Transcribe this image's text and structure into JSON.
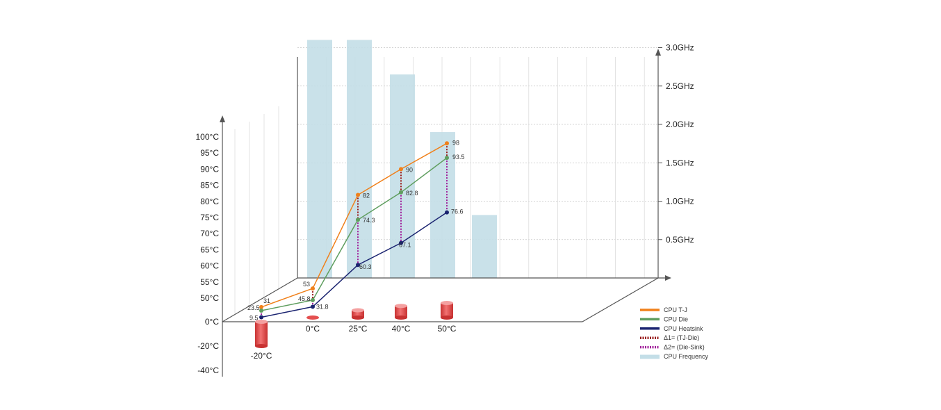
{
  "chart_data": {
    "type": "line",
    "title": "",
    "categories": [
      "-20°C",
      "0°C",
      "25°C",
      "40°C",
      "50°C"
    ],
    "y_left": {
      "unit": "°C",
      "positive_ticks": [
        "100°C",
        "95°C",
        "90°C",
        "85°C",
        "80°C",
        "75°C",
        "70°C",
        "65°C",
        "60°C",
        "55°C",
        "50°C"
      ],
      "zero_tick": "0°C",
      "negative_ticks": [
        "-20°C",
        "-40°C"
      ],
      "range": [
        -40,
        100
      ]
    },
    "y_right": {
      "unit": "GHz",
      "ticks": [
        "3.0GHz",
        "2.5GHz",
        "2.0GHz",
        "1.5GHz",
        "1.0GHz",
        "0.5GHz"
      ],
      "range": [
        0,
        3.0
      ]
    },
    "series": [
      {
        "name": "CPU T-J",
        "color": "#f0801a",
        "values": [
          31,
          53,
          82,
          90,
          98
        ],
        "labels": [
          "31",
          "53",
          "82",
          "90",
          "98"
        ]
      },
      {
        "name": "CPU Die",
        "color": "#5f9e5f",
        "values": [
          23.5,
          45.8,
          74.3,
          82.8,
          93.5
        ],
        "labels": [
          "23.5",
          "45.8",
          "74.3",
          "82.8",
          "93.5"
        ]
      },
      {
        "name": "CPU Heatsink",
        "color": "#1a2370",
        "values": [
          9.5,
          31.8,
          60.3,
          67.1,
          76.6
        ],
        "labels": [
          "9.5",
          "31.8",
          "60.3",
          "67.1",
          "76.6"
        ]
      }
    ],
    "deltas": [
      {
        "name": "Δ1= (TJ-Die)",
        "color": "#9a1c1c",
        "style": "dotted"
      },
      {
        "name": "Δ2= (Die-Sink)",
        "color": "#a01f9a",
        "style": "dotted"
      }
    ],
    "frequency": {
      "name": "CPU Frequency",
      "color": "#c3dee7",
      "values": [
        3.1,
        3.1,
        2.65,
        1.9,
        0.82
      ]
    },
    "ambient_temperatures": [
      -20,
      0,
      25,
      40,
      50
    ],
    "ambient_color": "#e44f4f",
    "grid": true,
    "legend_position": "bottom-right"
  }
}
